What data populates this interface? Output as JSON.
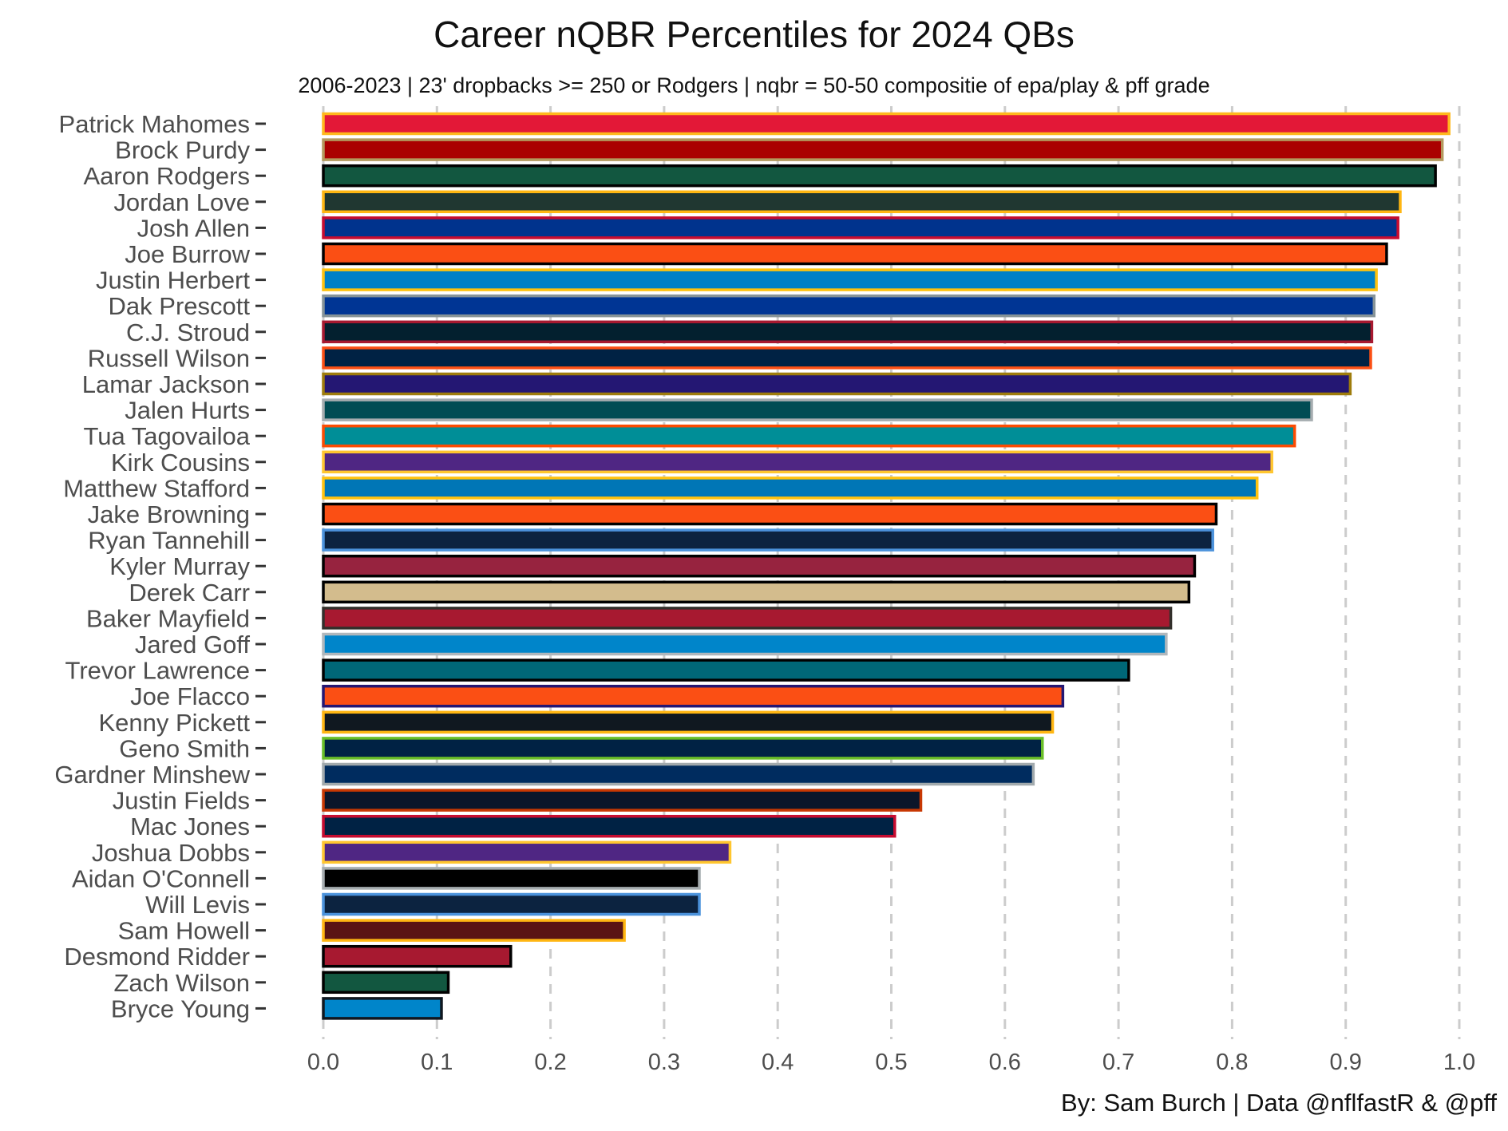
{
  "chart_data": {
    "type": "bar",
    "orientation": "horizontal",
    "title": "Career nQBR Percentiles for 2024 QBs",
    "subtitle": "2006-2023  |  23' dropbacks >= 250 or Rodgers  |  nqbr = 50-50 compositie of epa/play & pff grade",
    "caption": "By: Sam Burch  |  Data @nflfastR & @pff",
    "xlim": [
      0,
      1
    ],
    "xticks": [
      "0.0",
      "0.1",
      "0.2",
      "0.3",
      "0.4",
      "0.5",
      "0.6",
      "0.7",
      "0.8",
      "0.9",
      "1.0"
    ],
    "grid": "vertical dashed",
    "categories": [
      "Patrick Mahomes",
      "Brock Purdy",
      "Aaron Rodgers",
      "Jordan Love",
      "Josh Allen",
      "Joe Burrow",
      "Justin Herbert",
      "Dak Prescott",
      "C.J. Stroud",
      "Russell Wilson",
      "Lamar Jackson",
      "Jalen Hurts",
      "Tua Tagovailoa",
      "Kirk Cousins",
      "Matthew Stafford",
      "Jake Browning",
      "Ryan Tannehill",
      "Kyler Murray",
      "Derek Carr",
      "Baker Mayfield",
      "Jared Goff",
      "Trevor Lawrence",
      "Joe Flacco",
      "Kenny Pickett",
      "Geno Smith",
      "Gardner Minshew",
      "Justin Fields",
      "Mac Jones",
      "Joshua Dobbs",
      "Aidan O'Connell",
      "Will Levis",
      "Sam Howell",
      "Desmond Ridder",
      "Zach Wilson",
      "Bryce Young"
    ],
    "values": [
      0.991,
      0.985,
      0.979,
      0.948,
      0.946,
      0.936,
      0.927,
      0.925,
      0.923,
      0.922,
      0.904,
      0.87,
      0.855,
      0.835,
      0.822,
      0.786,
      0.783,
      0.767,
      0.762,
      0.746,
      0.742,
      0.709,
      0.651,
      0.642,
      0.633,
      0.625,
      0.526,
      0.503,
      0.358,
      0.331,
      0.331,
      0.265,
      0.165,
      0.11,
      0.104
    ],
    "fill_colors": [
      "#e31837",
      "#aa0000",
      "#125740",
      "#203731",
      "#00338d",
      "#fb4f14",
      "#0080c6",
      "#003594",
      "#03202f",
      "#002244",
      "#241773",
      "#004c54",
      "#008e97",
      "#4f2683",
      "#0076b6",
      "#fb4f14",
      "#0c2340",
      "#97233f",
      "#d3bc8d",
      "#a71930",
      "#0085ca",
      "#006778",
      "#fb4f14",
      "#101820",
      "#002244",
      "#002c5f",
      "#0b162a",
      "#002244",
      "#4f2683",
      "#000000",
      "#0c2340",
      "#5a1414",
      "#a71930",
      "#125740",
      "#0085ca"
    ],
    "outline_colors": [
      "#ffb81c",
      "#b3995d",
      "#000000",
      "#ffb612",
      "#c60c30",
      "#000000",
      "#ffc20e",
      "#869397",
      "#a71930",
      "#fb4f14",
      "#9e7c0c",
      "#a5acaf",
      "#fc4c02",
      "#ffc62f",
      "#ffc20e",
      "#000000",
      "#4b92db",
      "#000000",
      "#000000",
      "#322f2b",
      "#b0b7bc",
      "#000000",
      "#241773",
      "#ffb612",
      "#69be28",
      "#a2aaad",
      "#c83803",
      "#c60c30",
      "#ffc62f",
      "#a5acaf",
      "#4b92db",
      "#ffb612",
      "#000000",
      "#000000",
      "#101820"
    ]
  }
}
